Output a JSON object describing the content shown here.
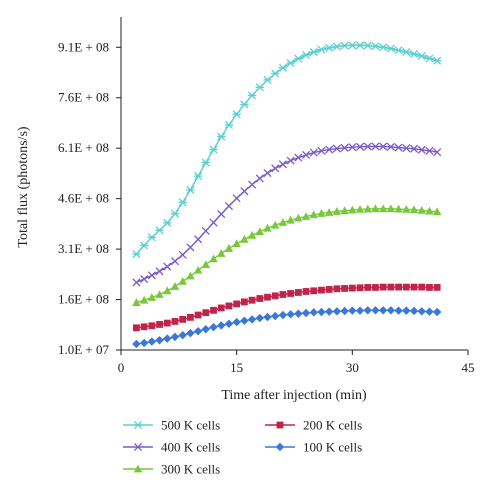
{
  "chart_data": {
    "type": "line",
    "xlabel": "Time after injection (min)",
    "ylabel": "Total flux (photons/s)",
    "xlim": [
      0,
      45
    ],
    "ylim": [
      10000000,
      1000000000
    ],
    "x_ticks": [
      {
        "value": 0,
        "label": "0"
      },
      {
        "value": 15,
        "label": "15"
      },
      {
        "value": 30,
        "label": "30"
      },
      {
        "value": 45,
        "label": "45"
      }
    ],
    "y_ticks": [
      {
        "value": 10000000,
        "label": "1.0E + 07"
      },
      {
        "value": 160000000,
        "label": "1.6E + 08"
      },
      {
        "value": 310000000,
        "label": "3.1E + 08"
      },
      {
        "value": 460000000,
        "label": "4.6E + 08"
      },
      {
        "value": 610000000,
        "label": "6.1E + 08"
      },
      {
        "value": 760000000,
        "label": "7.6E + 08"
      },
      {
        "value": 910000000,
        "label": "9.1E + 08"
      }
    ],
    "grid": false,
    "legend_position": "bottom",
    "x": [
      2,
      3,
      4,
      5,
      6,
      7,
      8,
      9,
      10,
      11,
      12,
      13,
      14,
      15,
      16,
      17,
      18,
      19,
      20,
      21,
      22,
      23,
      24,
      25,
      26,
      27,
      28,
      29,
      30,
      31,
      32,
      33,
      34,
      35,
      36,
      37,
      38,
      39,
      40,
      41
    ],
    "series": [
      {
        "name": "500 K cells",
        "color": "#5bcfd1",
        "marker": "asterisk",
        "values": [
          295000000,
          321000000,
          345000000,
          366000000,
          388000000,
          415000000,
          449000000,
          486000000,
          527000000,
          567000000,
          606000000,
          644000000,
          679000000,
          711000000,
          740000000,
          767000000,
          791000000,
          813000000,
          832000000,
          849000000,
          863000000,
          876000000,
          887000000,
          896000000,
          903000000,
          908000000,
          912000000,
          915000000,
          916000000,
          916000000,
          915000000,
          913000000,
          910000000,
          906000000,
          901000000,
          896000000,
          890000000,
          884000000,
          877000000,
          870000000
        ]
      },
      {
        "name": "400 K cells",
        "color": "#7a5cc9",
        "marker": "x",
        "values": [
          211000000,
          221000000,
          232000000,
          244000000,
          258000000,
          274000000,
          293000000,
          315000000,
          339000000,
          364000000,
          389000000,
          414000000,
          438000000,
          461000000,
          482000000,
          502000000,
          520000000,
          536000000,
          550000000,
          562000000,
          573000000,
          582000000,
          590000000,
          597000000,
          602000000,
          606000000,
          609000000,
          611000000,
          613000000,
          614000000,
          615000000,
          615000000,
          615000000,
          614000000,
          612000000,
          610000000,
          608000000,
          605000000,
          602000000,
          598000000
        ]
      },
      {
        "name": "300 K cells",
        "color": "#77c93a",
        "marker": "triangle",
        "values": [
          151000000,
          158000000,
          166000000,
          175000000,
          186000000,
          199000000,
          214000000,
          230000000,
          247000000,
          264000000,
          281000000,
          297000000,
          312000000,
          326000000,
          339000000,
          351000000,
          362000000,
          372000000,
          381000000,
          389000000,
          396000000,
          402000000,
          407000000,
          412000000,
          416000000,
          419000000,
          422000000,
          424000000,
          426000000,
          428000000,
          429000000,
          430000000,
          430000000,
          430000000,
          429000000,
          428000000,
          427000000,
          425000000,
          423000000,
          421000000
        ]
      },
      {
        "name": "200 K cells",
        "color": "#c0244a",
        "marker": "square",
        "values": [
          76000000,
          79000000,
          82000000,
          86000000,
          90000000,
          95000000,
          101000000,
          107000000,
          114000000,
          121000000,
          128000000,
          135000000,
          141000000,
          147000000,
          153000000,
          158000000,
          163000000,
          167000000,
          171000000,
          175000000,
          178000000,
          181000000,
          184000000,
          186000000,
          188000000,
          190000000,
          192000000,
          193000000,
          194000000,
          195000000,
          196000000,
          196000000,
          197000000,
          197000000,
          197000000,
          197000000,
          197000000,
          197000000,
          196000000,
          196000000
        ]
      },
      {
        "name": "100 K cells",
        "color": "#3a78d8",
        "marker": "diamond",
        "values": [
          28000000,
          31000000,
          35000000,
          39000000,
          44000000,
          49000000,
          54000000,
          60000000,
          66000000,
          72000000,
          78000000,
          83000000,
          88000000,
          93000000,
          97000000,
          101000000,
          105000000,
          108000000,
          111000000,
          114000000,
          116000000,
          118000000,
          120000000,
          122000000,
          123000000,
          124000000,
          125000000,
          126000000,
          127000000,
          127000000,
          128000000,
          128000000,
          128000000,
          128000000,
          127000000,
          127000000,
          126000000,
          125000000,
          124000000,
          123000000
        ]
      }
    ]
  }
}
